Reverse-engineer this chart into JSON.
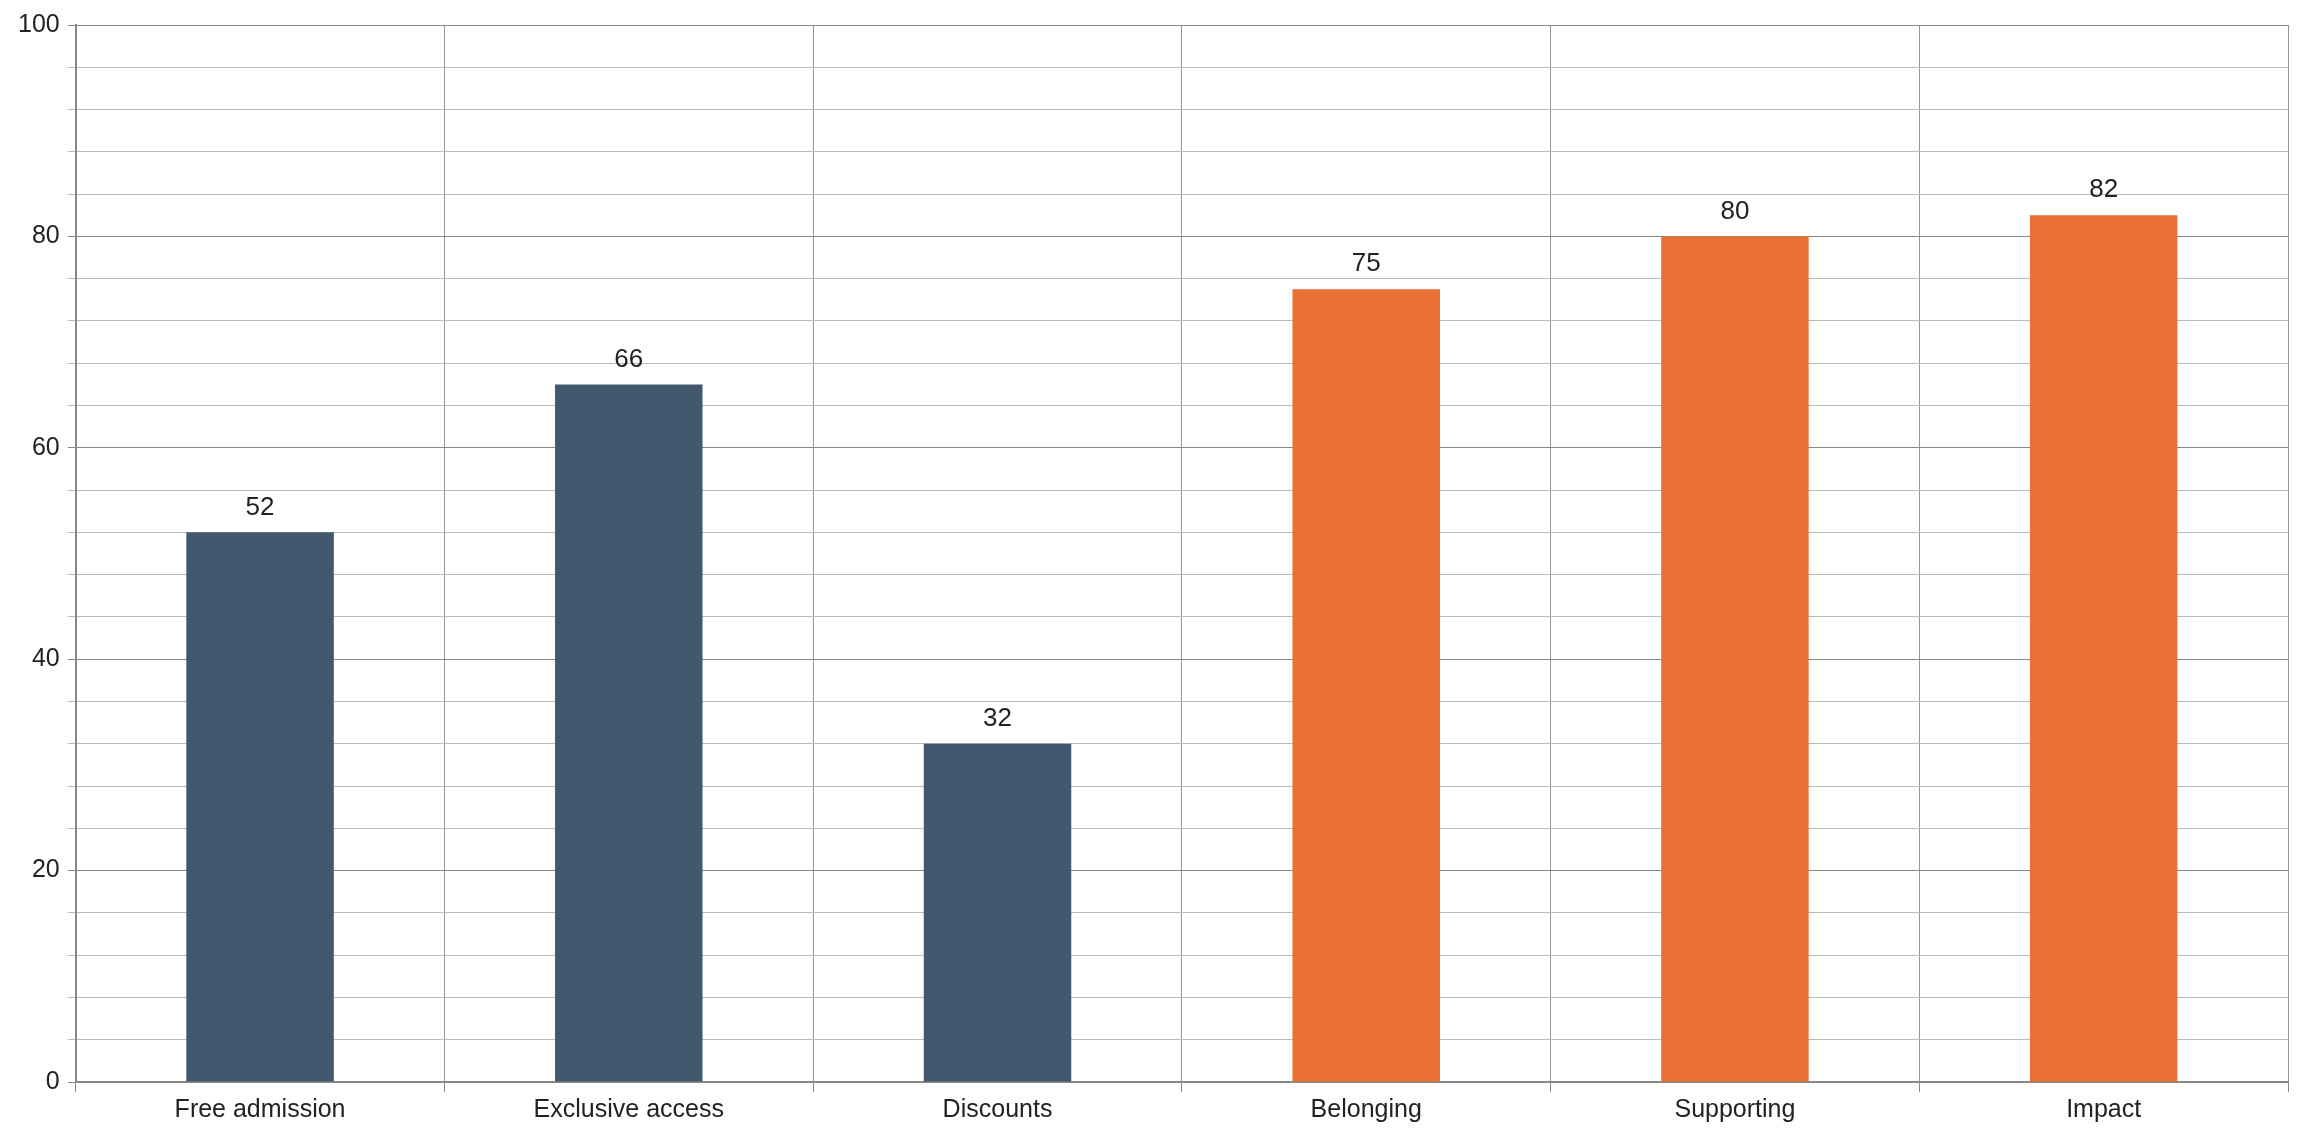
{
  "chart_data": {
    "type": "bar",
    "categories": [
      "Free admission",
      "Exclusive access",
      "Discounts",
      "Belonging",
      "Supporting",
      "Impact"
    ],
    "values": [
      52,
      66,
      32,
      75,
      80,
      82
    ],
    "colors": [
      "#41586f",
      "#41586f",
      "#41586f",
      "#e87133",
      "#e87133",
      "#e87133"
    ],
    "ylim": [
      0,
      100
    ],
    "yticks": [
      0,
      {
        "value": 4,
        "label": null
      },
      {
        "value": 8,
        "label": null
      },
      {
        "value": 12,
        "label": null
      },
      {
        "value": 16,
        "label": null
      },
      20,
      {
        "value": 24,
        "label": null
      },
      {
        "value": 28,
        "label": null
      },
      {
        "value": 32,
        "label": null
      },
      {
        "value": 36,
        "label": null
      },
      40,
      {
        "value": 44,
        "label": null
      },
      {
        "value": 48,
        "label": null
      },
      {
        "value": 52,
        "label": null
      },
      {
        "value": 56,
        "label": null
      },
      60,
      {
        "value": 64,
        "label": null
      },
      {
        "value": 68,
        "label": null
      },
      {
        "value": 72,
        "label": null
      },
      {
        "value": 76,
        "label": null
      },
      80,
      {
        "value": 84,
        "label": null
      },
      {
        "value": 88,
        "label": null
      },
      {
        "value": 92,
        "label": null
      },
      {
        "value": 96,
        "label": null
      },
      100
    ],
    "grid": true,
    "data_labels": true
  }
}
